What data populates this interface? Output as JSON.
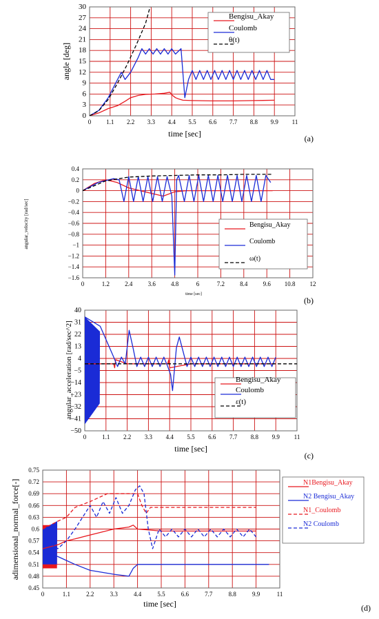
{
  "colors": {
    "red": "#e8181e",
    "blue": "#1a2bd6",
    "black": "#000000",
    "grid": "#cc1111",
    "page": "#ffffff"
  },
  "chart_data": [
    {
      "panel": "(a)",
      "type": "line",
      "xlabel": "time [sec]",
      "ylabel": "angle [deg]",
      "xlim": [
        0,
        11
      ],
      "ylim": [
        0,
        30
      ],
      "xticks": [
        "0",
        "1.1",
        "2.2",
        "3.3",
        "4.4",
        "5.5",
        "6.6",
        "7.7",
        "8.8",
        "9.9",
        "11"
      ],
      "yticks": [
        "0",
        "3",
        "6",
        "9",
        "12",
        "15",
        "18",
        "21",
        "24",
        "27",
        "30"
      ],
      "grid": true,
      "legend_position": "top-right",
      "series": [
        {
          "name": "Bengisu_Akay",
          "style": "solid",
          "color": "red",
          "x": [
            0,
            0.5,
            1.0,
            1.5,
            1.7,
            1.9,
            2.2,
            2.6,
            3.0,
            3.5,
            4.0,
            4.3,
            4.4,
            4.6,
            4.8,
            5.0,
            5.5,
            6.6,
            7.7,
            8.8,
            9.9
          ],
          "y": [
            0,
            0.8,
            2.0,
            2.8,
            3.4,
            4.0,
            5.0,
            5.6,
            5.9,
            6.0,
            6.2,
            6.5,
            5.8,
            5.0,
            4.6,
            4.3,
            4.2,
            4.1,
            4.1,
            4.2,
            4.3
          ]
        },
        {
          "name": "Coulomb",
          "style": "solid",
          "color": "blue",
          "x": [
            0,
            0.5,
            1.0,
            1.5,
            1.7,
            1.9,
            2.2,
            2.6,
            2.8,
            3.0,
            3.2,
            3.4,
            3.6,
            3.8,
            4.0,
            4.2,
            4.4,
            4.6,
            4.9,
            5.1,
            5.3,
            5.5,
            5.7,
            5.9,
            6.1,
            6.3,
            6.5,
            6.7,
            6.9,
            7.1,
            7.3,
            7.5,
            7.7,
            7.9,
            8.1,
            8.3,
            8.5,
            8.7,
            8.9,
            9.1,
            9.3,
            9.5,
            9.7,
            9.9
          ],
          "y": [
            0,
            1.5,
            5.0,
            10.0,
            12.0,
            10.0,
            12.0,
            16.0,
            18.5,
            17.0,
            18.5,
            17.0,
            18.5,
            17.0,
            18.5,
            17.0,
            18.5,
            17.0,
            18.5,
            5.0,
            10.0,
            12.5,
            10.0,
            12.5,
            10.0,
            12.5,
            10.0,
            12.5,
            10.0,
            12.5,
            10.0,
            12.5,
            10.0,
            12.5,
            10.0,
            12.5,
            10.0,
            12.5,
            10.0,
            12.5,
            10.0,
            12.5,
            10.0,
            10.0
          ]
        },
        {
          "name": "θ(t)",
          "style": "dashed",
          "color": "black",
          "x": [
            0,
            0.5,
            1.0,
            1.5,
            2.0,
            2.5,
            3.0,
            3.24
          ],
          "y": [
            0,
            1.4,
            4.5,
            9.0,
            14.0,
            19.5,
            25.5,
            30.0
          ]
        }
      ]
    },
    {
      "panel": "(b)",
      "type": "line",
      "xlabel": "time [sec]",
      "ylabel": "angular_velocity [rad/sec]",
      "xlim": [
        0,
        12
      ],
      "ylim": [
        -1.6,
        0.4
      ],
      "xticks": [
        "0",
        "1.2",
        "2.4",
        "3.6",
        "4.8",
        "6",
        "7.2",
        "8.4",
        "9.6",
        "10.8",
        "12"
      ],
      "yticks": [
        "−1.6",
        "−1.4",
        "−1.2",
        "−1",
        "−0.8",
        "−0.6",
        "−0.4",
        "−0.2",
        "0",
        "0.2",
        "0.4"
      ],
      "grid": true,
      "legend_position": "bottom-right",
      "series": [
        {
          "name": "Bengisu_Akay",
          "style": "solid",
          "color": "red",
          "x": [
            0,
            0.6,
            1.2,
            1.8,
            2.4,
            3.0,
            3.6,
            4.2,
            4.8,
            5.4,
            6.0,
            7.2,
            8.4,
            9.6,
            9.9
          ],
          "y": [
            0,
            0.13,
            0.2,
            0.15,
            0.05,
            0.0,
            -0.05,
            -0.1,
            -0.02,
            0.0,
            0.0,
            0.0,
            0.0,
            0.0,
            0.0
          ]
        },
        {
          "name": "Coulomb",
          "style": "solid",
          "color": "blue",
          "x": [
            0,
            0.8,
            1.6,
            1.9,
            2.15,
            2.4,
            2.65,
            2.9,
            3.15,
            3.4,
            3.65,
            3.9,
            4.15,
            4.4,
            4.65,
            4.8,
            4.9,
            5.0,
            5.3,
            5.55,
            5.8,
            6.05,
            6.3,
            6.55,
            6.8,
            7.05,
            7.3,
            7.55,
            7.8,
            8.05,
            8.3,
            8.55,
            8.8,
            9.05,
            9.3,
            9.55,
            9.8
          ],
          "y": [
            0,
            0.15,
            0.22,
            0.2,
            -0.2,
            0.26,
            -0.2,
            0.26,
            -0.2,
            0.26,
            -0.2,
            0.26,
            -0.2,
            0.26,
            -0.1,
            -1.55,
            0.2,
            0.28,
            -0.2,
            0.28,
            -0.2,
            0.28,
            -0.2,
            0.28,
            -0.2,
            0.28,
            -0.2,
            0.28,
            -0.2,
            0.28,
            -0.2,
            0.28,
            -0.2,
            0.28,
            -0.2,
            0.28,
            0.15
          ]
        },
        {
          "name": "ω(t)",
          "style": "dashed",
          "color": "black",
          "x": [
            0,
            1.2,
            2.4,
            3.6,
            4.8,
            6.0,
            7.2,
            8.4,
            9.6,
            9.9
          ],
          "y": [
            0,
            0.18,
            0.25,
            0.27,
            0.28,
            0.29,
            0.29,
            0.3,
            0.3,
            0.3
          ]
        }
      ]
    },
    {
      "panel": "(c)",
      "type": "line",
      "xlabel": "time [sec]",
      "ylabel": "angular_acceleration [rad/sec^2]",
      "xlim": [
        0,
        11
      ],
      "ylim": [
        -50,
        40
      ],
      "xticks": [
        "0",
        "1.1",
        "2.2",
        "3.3",
        "4.4",
        "5.5",
        "6.6",
        "7.7",
        "8.8",
        "9.9",
        "11"
      ],
      "yticks": [
        "−50",
        "−41",
        "−32",
        "−23",
        "−14",
        "−5",
        "4",
        "13",
        "22",
        "31",
        "40"
      ],
      "ytick_values": [
        -50,
        -41,
        -32,
        -23,
        -14,
        -5,
        4,
        13,
        22,
        31,
        40
      ],
      "grid": true,
      "legend_position": "bottom-right",
      "series": [
        {
          "name": "Bengisu_Akay",
          "style": "solid",
          "color": "red",
          "x": [
            0,
            1.5,
            1.55,
            1.6,
            2.2,
            4.3,
            4.35,
            4.4,
            5.5,
            9.9
          ],
          "y": [
            0,
            0,
            -3,
            3,
            0,
            0,
            3,
            -3,
            0,
            0
          ]
        },
        {
          "name": "Coulomb",
          "style": "solid",
          "color": "blue",
          "x": [
            0.0,
            0.8,
            1.5,
            1.7,
            1.9,
            2.1,
            2.3,
            2.5,
            2.7,
            2.9,
            3.1,
            3.3,
            3.5,
            3.7,
            3.9,
            4.1,
            4.3,
            4.45,
            4.55,
            4.75,
            4.9,
            5.3,
            5.5,
            5.7,
            5.9,
            6.1,
            6.3,
            6.5,
            6.7,
            6.9,
            7.1,
            7.3,
            7.5,
            7.7,
            7.9,
            8.1,
            8.3,
            8.5,
            8.7,
            8.9,
            9.1,
            9.3,
            9.5,
            9.7,
            9.9
          ],
          "y": [
            35,
            28,
            5,
            -2,
            5,
            0,
            25,
            12,
            -2,
            5,
            -2,
            5,
            -2,
            5,
            -2,
            5,
            -2,
            -8,
            -20,
            12,
            20,
            -2,
            5,
            -2,
            5,
            -2,
            5,
            -2,
            5,
            -2,
            5,
            -2,
            5,
            -2,
            5,
            -2,
            5,
            -2,
            5,
            -2,
            5,
            -2,
            5,
            -2,
            5
          ]
        },
        {
          "name": "ε(t)",
          "style": "dashed",
          "color": "black",
          "x": [
            0,
            11
          ],
          "y": [
            0,
            0
          ]
        }
      ]
    },
    {
      "panel": "(d)",
      "type": "line",
      "xlabel": "time [sec]",
      "ylabel": "adimensional_normal_force[-]",
      "xlim": [
        0,
        11
      ],
      "ylim": [
        0.45,
        0.75
      ],
      "xticks": [
        "0",
        "1.1",
        "2.2",
        "3.3",
        "4.4",
        "5.5",
        "6.6",
        "7.7",
        "8.8",
        "9.9",
        "11"
      ],
      "yticks": [
        "0.45",
        "0.48",
        "0.51",
        "0.54",
        "0.57",
        "0.6",
        "0.63",
        "0.66",
        "0.69",
        "0.72",
        "0.75"
      ],
      "grid": true,
      "legend_position": "right",
      "series": [
        {
          "name": "N1Bengisu_Akay",
          "style": "solid",
          "color": "red",
          "x": [
            0,
            0.7,
            1.1,
            1.5,
            2.2,
            3.3,
            4.0,
            4.2,
            4.4,
            5.5,
            6.6,
            7.7,
            8.8,
            9.9
          ],
          "y": [
            0.55,
            0.56,
            0.57,
            0.575,
            0.585,
            0.6,
            0.605,
            0.61,
            0.6,
            0.595,
            0.595,
            0.595,
            0.595,
            0.595
          ]
        },
        {
          "name": "N2 Bengisu_Akay",
          "style": "solid",
          "color": "blue",
          "x": [
            0,
            0.7,
            1.1,
            1.5,
            2.2,
            3.3,
            4.0,
            4.2,
            4.4,
            5.5,
            6.6,
            7.7,
            8.8,
            9.9,
            10.5
          ],
          "y": [
            0.54,
            0.53,
            0.52,
            0.51,
            0.495,
            0.485,
            0.48,
            0.5,
            0.51,
            0.51,
            0.51,
            0.51,
            0.51,
            0.51,
            0.51
          ]
        },
        {
          "name": "N1_Coulomb",
          "style": "dashed",
          "color": "red",
          "x": [
            0,
            0.7,
            1.1,
            1.5,
            2.2,
            3.0,
            3.3,
            4.0,
            4.4,
            4.6,
            4.8,
            5.0,
            5.5,
            6.6,
            7.7,
            8.8,
            9.9
          ],
          "y": [
            0.6,
            0.62,
            0.63,
            0.655,
            0.67,
            0.69,
            0.69,
            0.69,
            0.69,
            0.66,
            0.64,
            0.655,
            0.655,
            0.655,
            0.655,
            0.655,
            0.655
          ]
        },
        {
          "name": "N2 Coulomb",
          "style": "dashed",
          "color": "blue",
          "x": [
            0,
            0.7,
            1.1,
            1.5,
            2.2,
            2.5,
            2.8,
            3.1,
            3.4,
            3.7,
            4.0,
            4.3,
            4.5,
            4.7,
            4.9,
            5.1,
            5.4,
            5.7,
            6.0,
            6.3,
            6.6,
            6.9,
            7.2,
            7.5,
            7.8,
            8.1,
            8.4,
            8.7,
            9.0,
            9.3,
            9.6,
            9.9
          ],
          "y": [
            0.58,
            0.55,
            0.57,
            0.6,
            0.66,
            0.63,
            0.67,
            0.64,
            0.68,
            0.64,
            0.66,
            0.7,
            0.71,
            0.69,
            0.6,
            0.55,
            0.6,
            0.58,
            0.6,
            0.58,
            0.6,
            0.58,
            0.6,
            0.58,
            0.6,
            0.58,
            0.6,
            0.58,
            0.6,
            0.58,
            0.6,
            0.58
          ]
        }
      ]
    }
  ]
}
